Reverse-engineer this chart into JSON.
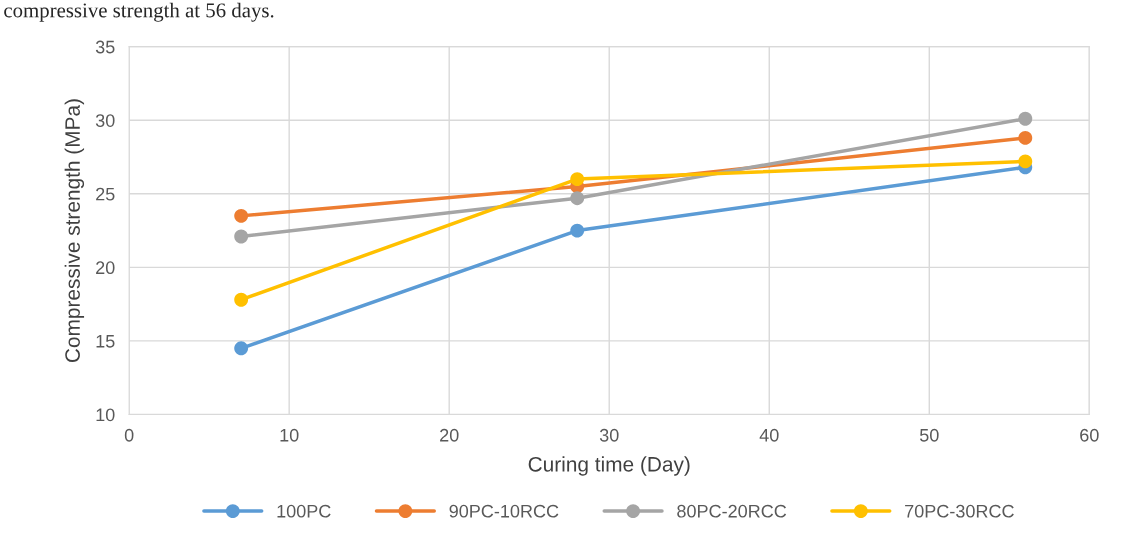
{
  "chart_data": {
    "type": "line",
    "annotations": [
      "compressive strength at 56 days."
    ],
    "xlabel": "Curing time (Day)",
    "ylabel": "Compressive strength (MPa)",
    "x": [
      7,
      28,
      56
    ],
    "series": [
      {
        "name": "100PC",
        "color": "#5b9bd5",
        "values": [
          14.5,
          22.5,
          26.8
        ]
      },
      {
        "name": "90PC-10RCC",
        "color": "#ed7d31",
        "values": [
          23.5,
          25.5,
          28.8
        ]
      },
      {
        "name": "80PC-20RCC",
        "color": "#a5a5a5",
        "values": [
          22.1,
          24.7,
          30.1
        ]
      },
      {
        "name": "70PC-30RCC",
        "color": "#ffc000",
        "values": [
          17.8,
          26.0,
          27.2
        ]
      }
    ],
    "xlim": [
      0,
      60
    ],
    "xticks": [
      0,
      10,
      20,
      30,
      40,
      50,
      60
    ],
    "ylim": [
      10,
      35
    ],
    "yticks": [
      10,
      15,
      20,
      25,
      30,
      35
    ],
    "grid": true,
    "legend": "bottom",
    "marker": "circle",
    "line_style": "solid"
  }
}
